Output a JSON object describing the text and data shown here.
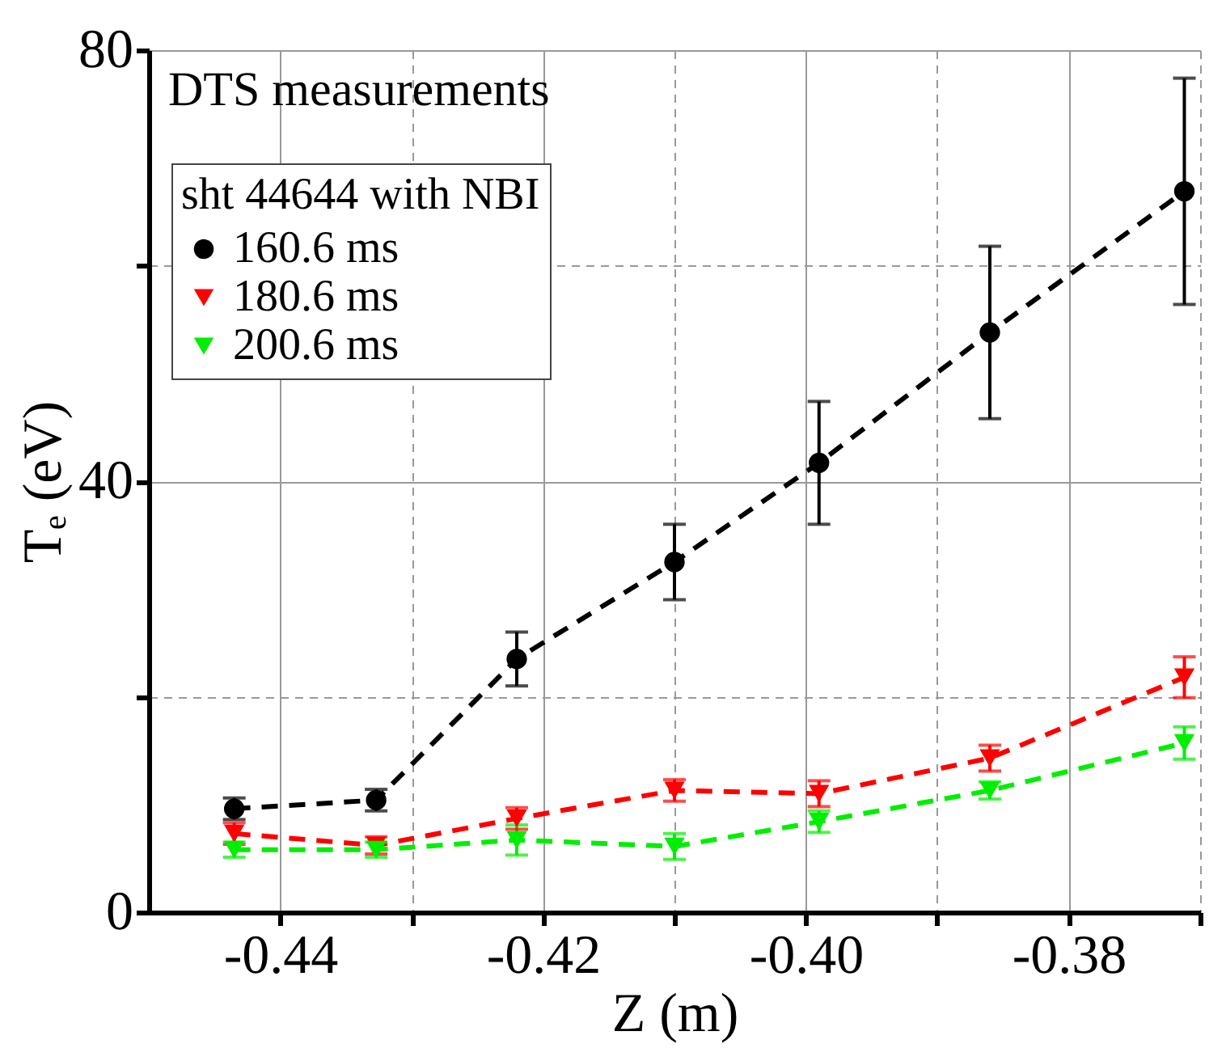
{
  "chart_data": {
    "type": "line",
    "xlabel": "Z (m)",
    "ylabel": "Tₑ (eV)",
    "legend_title": "sht 44644 with NBI",
    "annotations": [
      "DTS measurements"
    ],
    "xlim": [
      -0.45,
      -0.37
    ],
    "xticks": [
      -0.44,
      {
        "value": -0.43,
        "label": null
      },
      -0.42,
      {
        "value": -0.41,
        "label": null
      },
      {
        "value": -0.4,
        "label": "-0.40"
      },
      {
        "value": -0.39,
        "label": null
      },
      -0.38,
      {
        "value": -0.37,
        "label": null
      }
    ],
    "ylim": [
      0,
      80
    ],
    "yticks": [
      0,
      {
        "value": 20,
        "label": null
      },
      40,
      {
        "value": 60,
        "label": null
      },
      80
    ],
    "grid": true,
    "legend": "top left",
    "line_style": "dashed",
    "x": [
      -0.4435,
      -0.4327,
      -0.422,
      -0.41,
      -0.399,
      -0.386,
      -0.3712
    ],
    "series": [
      {
        "name": "160.6 ms",
        "color": "#000000",
        "marker": "circle",
        "values": [
          9.6,
          10.4,
          23.5,
          32.5,
          41.7,
          53.8,
          66.9
        ],
        "errors": [
          1,
          1,
          2.5,
          3.5,
          5.7,
          8,
          10.5
        ]
      },
      {
        "name": "180.6 ms",
        "color": "#ff0000",
        "marker": "triangle",
        "values": [
          7.3,
          6.2,
          8.7,
          11.3,
          11.0,
          14.3,
          21.8
        ],
        "errors": [
          1,
          0.8,
          1,
          1,
          1.2,
          1.2,
          1.9
        ]
      },
      {
        "name": "200.6 ms",
        "color": "#00ee00",
        "marker": "triangle",
        "values": [
          5.8,
          5.8,
          6.7,
          6.1,
          8.4,
          11.3,
          15.7
        ],
        "errors": [
          0.7,
          0.7,
          1.4,
          1.2,
          1,
          0.8,
          1.5
        ]
      }
    ]
  }
}
